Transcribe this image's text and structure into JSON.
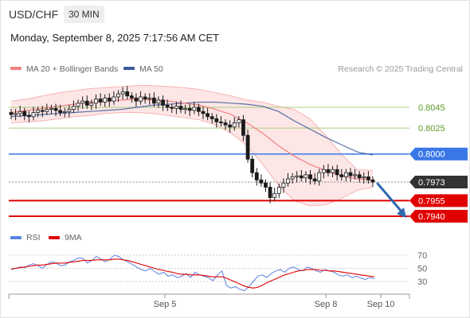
{
  "header": {
    "symbol": "USD/CHF",
    "timeframe": "30 MIN",
    "datetime": "Monday, September 8, 2025 7:17:56 AM CET"
  },
  "legend": {
    "ma20_bb": "MA 20 + Bollinger Bands",
    "ma50": "MA 50",
    "credit": "Research © 2025 Trading Central"
  },
  "colors": {
    "price_up": "#1a1a1a",
    "price_down": "#1a1a1a",
    "ma20": "#f08080",
    "ma50": "#3a5a9a",
    "bb_fill": "#fde2e2",
    "resistance": "#a8cf7a",
    "pivot": "#3a78e8",
    "support": "#e00000",
    "current": "#333333",
    "arrow": "#2f68b0",
    "rsi": "#5b82e0",
    "rsi_ma": "#e00000"
  },
  "chart_data": [
    {
      "type": "line",
      "subtype": "candlestick",
      "x_ticks": [
        "Sep 5",
        "Sep 8",
        "Sep 10"
      ],
      "ylim": [
        0.7935,
        0.8068
      ],
      "levels": [
        {
          "value": 0.8045,
          "label": "0.8045",
          "role": "resistance"
        },
        {
          "value": 0.8025,
          "label": "0.8025",
          "role": "resistance"
        },
        {
          "value": 0.8,
          "label": "0.8000",
          "role": "pivot"
        },
        {
          "value": 0.7973,
          "label": "0.7973",
          "role": "current"
        },
        {
          "value": 0.7955,
          "label": "0.7955",
          "role": "support"
        },
        {
          "value": 0.794,
          "label": "0.7940",
          "role": "support"
        }
      ],
      "series": [
        {
          "name": "MA 20 + Bollinger Bands",
          "kind": "ma20_bb"
        },
        {
          "name": "MA 50",
          "kind": "ma50"
        }
      ],
      "close": [
        0.8038,
        0.8039,
        0.8041,
        0.8037,
        0.8036,
        0.804,
        0.8042,
        0.8041,
        0.8043,
        0.8044,
        0.8042,
        0.804,
        0.8041,
        0.8043,
        0.8046,
        0.8049,
        0.8051,
        0.8047,
        0.8049,
        0.8053,
        0.805,
        0.8054,
        0.8051,
        0.8055,
        0.8058,
        0.806,
        0.8056,
        0.8054,
        0.8051,
        0.8055,
        0.8053,
        0.8054,
        0.8049,
        0.8052,
        0.8047,
        0.8045,
        0.8044,
        0.8046,
        0.8043,
        0.8044,
        0.8042,
        0.8045,
        0.8041,
        0.8039,
        0.8036,
        0.8034,
        0.8031,
        0.803,
        0.8028,
        0.8026,
        0.803,
        0.8033,
        0.8018,
        0.7995,
        0.7982,
        0.7975,
        0.7972,
        0.7968,
        0.7958,
        0.7962,
        0.7968,
        0.7972,
        0.7976,
        0.7978,
        0.7979,
        0.7977,
        0.798,
        0.7976,
        0.7974,
        0.7982,
        0.7985,
        0.7982,
        0.7985,
        0.798,
        0.7978,
        0.7982,
        0.7979,
        0.798,
        0.7977,
        0.7978,
        0.7975,
        0.7973
      ],
      "bb_upper": [
        0.8051,
        0.8053,
        0.8056,
        0.8059,
        0.8061,
        0.8063,
        0.8064,
        0.8065,
        0.8066,
        0.8066,
        0.8065,
        0.8064,
        0.8062,
        0.8059,
        0.8056,
        0.8052,
        0.805,
        0.8046,
        0.8043,
        0.8034,
        0.8018,
        0.8,
        0.7985,
        0.7984
      ],
      "bb_lower": [
        0.803,
        0.8031,
        0.8032,
        0.8034,
        0.8036,
        0.8037,
        0.8039,
        0.804,
        0.804,
        0.8039,
        0.8037,
        0.8035,
        0.8033,
        0.8028,
        0.802,
        0.8008,
        0.799,
        0.797,
        0.7955,
        0.795,
        0.7951,
        0.7957,
        0.7965,
        0.7968
      ],
      "ma20": [
        0.804,
        0.8042,
        0.8044,
        0.8046,
        0.8048,
        0.805,
        0.8051,
        0.8052,
        0.8053,
        0.8052,
        0.8051,
        0.8049,
        0.8047,
        0.8043,
        0.8038,
        0.803,
        0.802,
        0.8008,
        0.7998,
        0.799,
        0.7984,
        0.7979,
        0.7976,
        0.7975
      ],
      "ma50": [
        0.8036,
        0.8037,
        0.8038,
        0.8039,
        0.804,
        0.8041,
        0.8042,
        0.8043,
        0.8045,
        0.8047,
        0.8048,
        0.8049,
        0.805,
        0.805,
        0.8049,
        0.8048,
        0.8046,
        0.8041,
        0.8032,
        0.8024,
        0.8016,
        0.8009,
        0.8002,
        0.7999
      ],
      "projection": {
        "from": 0.7973,
        "to": 0.794
      }
    },
    {
      "type": "line",
      "title": "RSI",
      "series": [
        {
          "name": "RSI",
          "kind": "rsi"
        },
        {
          "name": "9MA",
          "kind": "rsi_ma"
        }
      ],
      "y_ticks": [
        70,
        50,
        30
      ],
      "ylim": [
        13,
        83
      ],
      "rsi": [
        48,
        50,
        52,
        51,
        55,
        57,
        54,
        50,
        56,
        60,
        58,
        54,
        55,
        60,
        62,
        66,
        65,
        58,
        62,
        68,
        64,
        60,
        64,
        70,
        68,
        63,
        60,
        56,
        52,
        48,
        46,
        50,
        45,
        41,
        44,
        38,
        40,
        36,
        38,
        42,
        36,
        44,
        40,
        38,
        36,
        31,
        40,
        46,
        24,
        20,
        22,
        18,
        16,
        22,
        30,
        38,
        40,
        36,
        42,
        46,
        48,
        44,
        50,
        52,
        48,
        46,
        52,
        50,
        46,
        44,
        48,
        46,
        44,
        40,
        38,
        40,
        36,
        38,
        35,
        33,
        36,
        34
      ],
      "rsi_ma": [
        49,
        50,
        51,
        52,
        53,
        54,
        55,
        55,
        56,
        57,
        58,
        58,
        58,
        59,
        60,
        61,
        62,
        62,
        62,
        63,
        63,
        63,
        63,
        64,
        64,
        63,
        62,
        60,
        58,
        56,
        54,
        52,
        50,
        48,
        47,
        45,
        44,
        42,
        41,
        41,
        40,
        40,
        40,
        39,
        38,
        37,
        37,
        37,
        35,
        32,
        29,
        26,
        23,
        21,
        20,
        21,
        24,
        28,
        31,
        34,
        37,
        40,
        42,
        44,
        46,
        47,
        48,
        48,
        48,
        47,
        47,
        46,
        46,
        45,
        44,
        43,
        42,
        41,
        40,
        39,
        38,
        37
      ]
    }
  ]
}
